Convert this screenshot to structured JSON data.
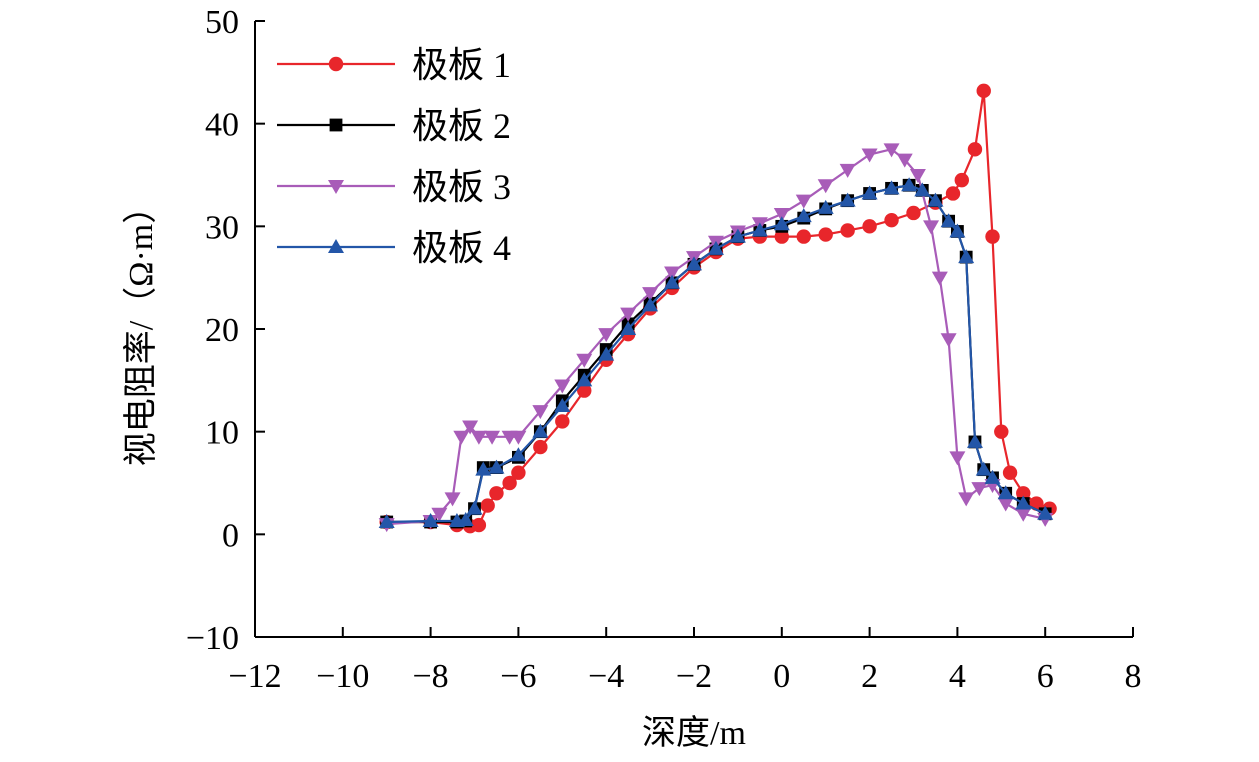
{
  "chart_data": {
    "type": "line",
    "title": "",
    "xlabel": "深度/m",
    "ylabel": "视电阻率/（Ω·m）",
    "xlim": [
      -12,
      8
    ],
    "ylim": [
      -10,
      50
    ],
    "xticks": [
      -12,
      -10,
      -8,
      -6,
      -4,
      -2,
      0,
      2,
      4,
      6,
      8
    ],
    "yticks": [
      -10,
      0,
      10,
      20,
      30,
      40,
      50
    ],
    "xtick_labels": [
      "−12",
      "−10",
      "−8",
      "−6",
      "−4",
      "−2",
      "0",
      "2",
      "4",
      "6",
      "8"
    ],
    "ytick_labels": [
      "−10",
      "0",
      "10",
      "20",
      "30",
      "40",
      "50"
    ],
    "legend_position": "top-left",
    "series": [
      {
        "name": "极板 1",
        "color": "#e8262b",
        "marker": "circle",
        "points": [
          [
            -9,
            1.2
          ],
          [
            -8,
            1.2
          ],
          [
            -7.4,
            0.9
          ],
          [
            -7.1,
            0.8
          ],
          [
            -6.9,
            0.9
          ],
          [
            -6.7,
            2.8
          ],
          [
            -6.5,
            4
          ],
          [
            -6.2,
            5
          ],
          [
            -6,
            6
          ],
          [
            -5.5,
            8.5
          ],
          [
            -5,
            11
          ],
          [
            -4.5,
            14
          ],
          [
            -4,
            17
          ],
          [
            -3.5,
            19.5
          ],
          [
            -3,
            22
          ],
          [
            -2.5,
            24
          ],
          [
            -2,
            26
          ],
          [
            -1.5,
            27.5
          ],
          [
            -1,
            28.8
          ],
          [
            -0.5,
            29
          ],
          [
            0,
            29
          ],
          [
            0.5,
            29
          ],
          [
            1,
            29.2
          ],
          [
            1.5,
            29.6
          ],
          [
            2,
            30
          ],
          [
            2.5,
            30.6
          ],
          [
            3,
            31.3
          ],
          [
            3.5,
            32.3
          ],
          [
            3.9,
            33.2
          ],
          [
            4.1,
            34.5
          ],
          [
            4.4,
            37.5
          ],
          [
            4.6,
            43.2
          ],
          [
            4.8,
            29
          ],
          [
            5,
            10
          ],
          [
            5.2,
            6
          ],
          [
            5.5,
            4
          ],
          [
            5.8,
            3
          ],
          [
            6.1,
            2.5
          ]
        ]
      },
      {
        "name": "极板 2",
        "color": "#000000",
        "marker": "square",
        "points": [
          [
            -9,
            1.2
          ],
          [
            -8,
            1.2
          ],
          [
            -7.4,
            1.2
          ],
          [
            -7.2,
            1.3
          ],
          [
            -7,
            2.5
          ],
          [
            -6.8,
            6.5
          ],
          [
            -6.5,
            6.5
          ],
          [
            -6,
            7.5
          ],
          [
            -5.5,
            10
          ],
          [
            -5,
            13
          ],
          [
            -4.5,
            15.5
          ],
          [
            -4,
            18
          ],
          [
            -3.5,
            20.5
          ],
          [
            -3,
            22.5
          ],
          [
            -2.5,
            24.5
          ],
          [
            -2,
            26.3
          ],
          [
            -1.5,
            27.8
          ],
          [
            -1,
            29
          ],
          [
            -0.5,
            29.6
          ],
          [
            0,
            30
          ],
          [
            0.5,
            30.8
          ],
          [
            1,
            31.7
          ],
          [
            1.5,
            32.5
          ],
          [
            2,
            33.2
          ],
          [
            2.5,
            33.7
          ],
          [
            2.9,
            34
          ],
          [
            3.2,
            33.5
          ],
          [
            3.5,
            32.5
          ],
          [
            3.8,
            30.5
          ],
          [
            4,
            29.5
          ],
          [
            4.2,
            27
          ],
          [
            4.4,
            9
          ],
          [
            4.6,
            6.3
          ],
          [
            4.8,
            5.5
          ],
          [
            5.1,
            4
          ],
          [
            5.5,
            3
          ],
          [
            6,
            2
          ]
        ]
      },
      {
        "name": "极板 3",
        "color": "#a85cb8",
        "marker": "triangle-down",
        "points": [
          [
            -9,
            1
          ],
          [
            -8,
            1.3
          ],
          [
            -7.8,
            2
          ],
          [
            -7.5,
            3.5
          ],
          [
            -7.3,
            9.5
          ],
          [
            -7.1,
            10.5
          ],
          [
            -6.9,
            9.5
          ],
          [
            -6.6,
            9.5
          ],
          [
            -6.2,
            9.5
          ],
          [
            -6,
            9.5
          ],
          [
            -5.5,
            12
          ],
          [
            -5,
            14.5
          ],
          [
            -4.5,
            17
          ],
          [
            -4,
            19.5
          ],
          [
            -3.5,
            21.5
          ],
          [
            -3,
            23.5
          ],
          [
            -2.5,
            25.5
          ],
          [
            -2,
            27
          ],
          [
            -1.5,
            28.5
          ],
          [
            -1,
            29.5
          ],
          [
            -0.5,
            30.3
          ],
          [
            0,
            31.2
          ],
          [
            0.5,
            32.5
          ],
          [
            1,
            34
          ],
          [
            1.5,
            35.5
          ],
          [
            2,
            37
          ],
          [
            2.5,
            37.5
          ],
          [
            2.8,
            36.5
          ],
          [
            3.1,
            35
          ],
          [
            3.4,
            30
          ],
          [
            3.6,
            25
          ],
          [
            3.8,
            19
          ],
          [
            4,
            7.5
          ],
          [
            4.2,
            3.5
          ],
          [
            4.5,
            4.5
          ],
          [
            4.8,
            4.8
          ],
          [
            5.1,
            3
          ],
          [
            5.5,
            2
          ],
          [
            6,
            1.5
          ]
        ]
      },
      {
        "name": "极板 4",
        "color": "#2356a8",
        "marker": "triangle-up",
        "points": [
          [
            -9,
            1.2
          ],
          [
            -8,
            1.3
          ],
          [
            -7.4,
            1.3
          ],
          [
            -7.2,
            1.4
          ],
          [
            -7,
            2.5
          ],
          [
            -6.8,
            6.3
          ],
          [
            -6.5,
            6.5
          ],
          [
            -6,
            7.7
          ],
          [
            -5.5,
            10
          ],
          [
            -5,
            12.5
          ],
          [
            -4.5,
            15
          ],
          [
            -4,
            17.5
          ],
          [
            -3.5,
            20
          ],
          [
            -3,
            22.3
          ],
          [
            -2.5,
            24.5
          ],
          [
            -2,
            26.3
          ],
          [
            -1.5,
            27.8
          ],
          [
            -1,
            29
          ],
          [
            -0.5,
            29.6
          ],
          [
            0,
            30.2
          ],
          [
            0.5,
            31
          ],
          [
            1,
            31.8
          ],
          [
            1.5,
            32.5
          ],
          [
            2,
            33.2
          ],
          [
            2.5,
            33.7
          ],
          [
            2.9,
            34
          ],
          [
            3.2,
            33.5
          ],
          [
            3.5,
            32.5
          ],
          [
            3.8,
            30.5
          ],
          [
            4,
            29.5
          ],
          [
            4.2,
            27
          ],
          [
            4.4,
            9
          ],
          [
            4.6,
            6.3
          ],
          [
            4.8,
            5.5
          ],
          [
            5.1,
            4
          ],
          [
            5.5,
            3
          ],
          [
            6,
            2
          ]
        ]
      }
    ]
  }
}
